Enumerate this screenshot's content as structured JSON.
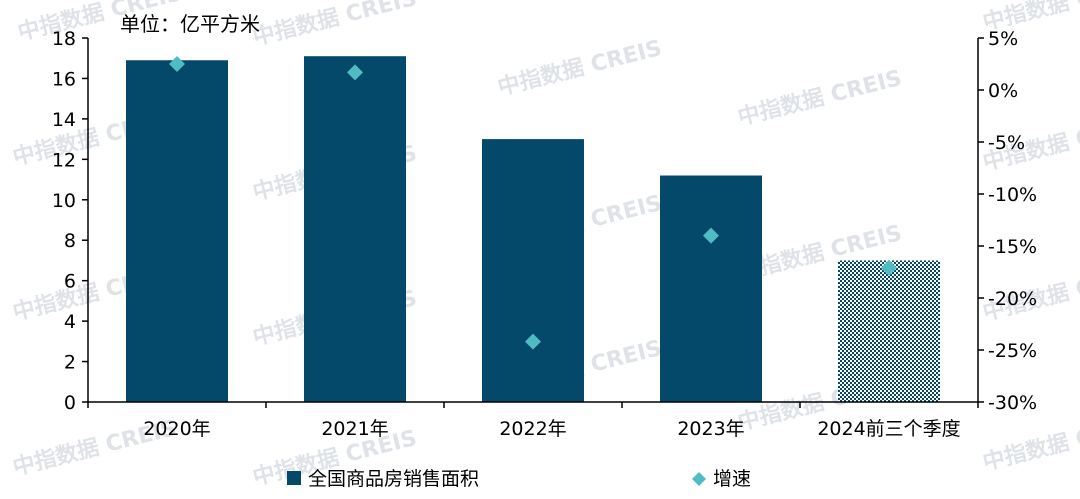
{
  "unit_label": "单位：亿平方米",
  "watermark": "中指数据 CREIS",
  "colors": {
    "bar": "#05496a",
    "bar_pattern": "#05496a",
    "marker": "#4fbcc4",
    "axis": "#000000"
  },
  "legend": [
    {
      "label": "全国商品房销售面积",
      "marker": "square",
      "color": "#05496a"
    },
    {
      "label": "增速",
      "marker": "diamond",
      "color": "#4fbcc4"
    }
  ],
  "chart_data": {
    "type": "bar",
    "categories": [
      "2020年",
      "2021年",
      "2022年",
      "2023年",
      "2024前三个季度"
    ],
    "series": [
      {
        "name": "全国商品房销售面积",
        "type": "bar",
        "axis": "left",
        "values": [
          16.9,
          17.1,
          13.0,
          11.2,
          7.0
        ],
        "patterned_last": true
      },
      {
        "name": "增速",
        "type": "scatter",
        "axis": "right",
        "marker": "diamond",
        "values": [
          2.5,
          1.7,
          -24.2,
          -14.0,
          -17.1
        ]
      }
    ],
    "y_left": {
      "min": 0,
      "max": 18,
      "ticks": [
        "0",
        "2",
        "4",
        "6",
        "8",
        "10",
        "12",
        "14",
        "16",
        "18"
      ]
    },
    "y_right": {
      "min": -30,
      "max": 5,
      "ticks": [
        "-30%",
        "-25%",
        "-20%",
        "-15%",
        "-10%",
        "-5%",
        "0%",
        "5%"
      ]
    },
    "legend_position": "bottom",
    "grid": false
  }
}
